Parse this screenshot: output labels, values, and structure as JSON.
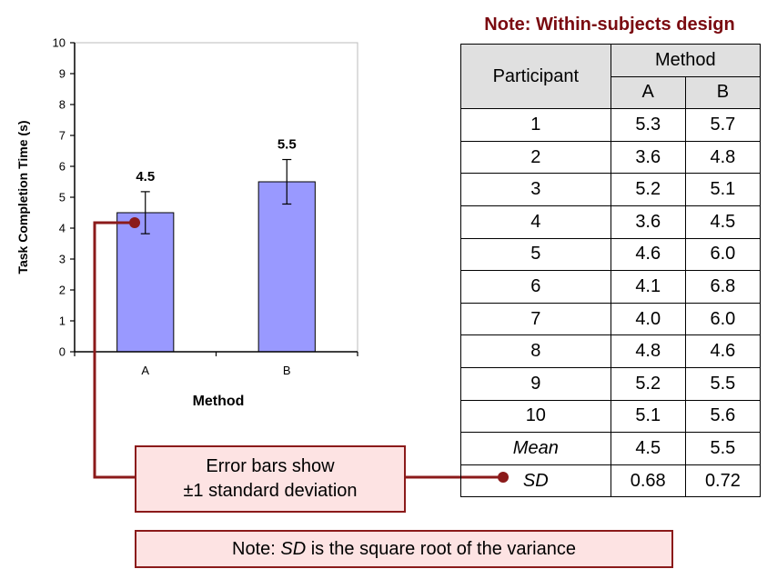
{
  "chart_data": {
    "type": "bar",
    "categories": [
      "A",
      "B"
    ],
    "values": [
      4.5,
      5.5
    ],
    "data_labels": [
      "4.5",
      "5.5"
    ],
    "error": [
      0.68,
      0.72
    ],
    "xlabel": "Method",
    "ylabel": "Task Completion Time (s)",
    "ylim": [
      0,
      10
    ],
    "yticks": [
      "0",
      "1",
      "2",
      "3",
      "4",
      "5",
      "6",
      "7",
      "8",
      "9",
      "10"
    ],
    "grid": false,
    "bar_color": "#9999ff"
  },
  "table": {
    "note": "Note: Within-subjects design",
    "header_participant": "Participant",
    "header_method": "Method",
    "sub_a": "A",
    "sub_b": "B",
    "rows": [
      [
        "1",
        "5.3",
        "5.7"
      ],
      [
        "2",
        "3.6",
        "4.8"
      ],
      [
        "3",
        "5.2",
        "5.1"
      ],
      [
        "4",
        "3.6",
        "4.5"
      ],
      [
        "5",
        "4.6",
        "6.0"
      ],
      [
        "6",
        "4.1",
        "6.8"
      ],
      [
        "7",
        "4.0",
        "6.0"
      ],
      [
        "8",
        "4.8",
        "4.6"
      ],
      [
        "9",
        "5.2",
        "5.5"
      ],
      [
        "10",
        "5.1",
        "5.6"
      ]
    ],
    "mean": [
      "Mean",
      "4.5",
      "5.5"
    ],
    "sd": [
      "SD",
      "0.68",
      "0.72"
    ]
  },
  "callouts": {
    "error_line1": "Error bars show",
    "error_line2": "±1 standard deviation",
    "note_prefix": "Note: ",
    "note_sd": "SD",
    "note_suffix": " is the square root of the variance"
  },
  "colors": {
    "accent": "#7a0a10",
    "callout_bg": "#fde3e3",
    "connector": "#8b1a1a"
  }
}
